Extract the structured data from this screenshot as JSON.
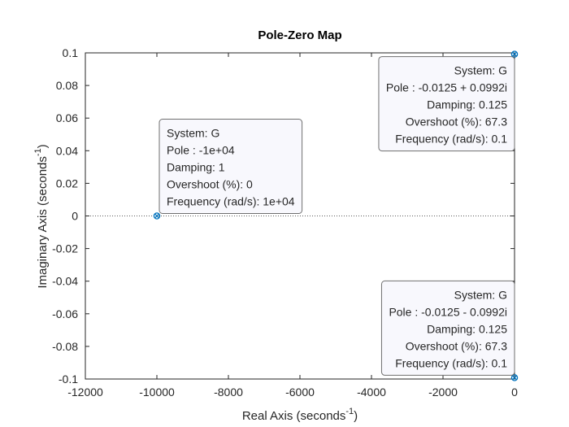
{
  "chart_data": {
    "type": "scatter",
    "title": "Pole-Zero Map",
    "xlabel": "Real Axis (seconds",
    "xlabel_sup": "-1",
    "xlabel_end": ")",
    "ylabel": "Imaginary Axis (seconds",
    "ylabel_sup": "-1",
    "ylabel_end": ")",
    "xlim": [
      -12000,
      0
    ],
    "ylim": [
      -0.1,
      0.1
    ],
    "xticks": [
      -12000,
      -10000,
      -8000,
      -6000,
      -4000,
      -2000,
      0
    ],
    "xtick_labels": [
      "-12000",
      "-10000",
      "-8000",
      "-6000",
      "-4000",
      "-2000",
      "0"
    ],
    "yticks": [
      0.1,
      0.08,
      0.06,
      0.04,
      0.02,
      0,
      -0.02,
      -0.04,
      -0.06,
      -0.08,
      -0.1
    ],
    "ytick_labels": [
      "0.1",
      "0.08",
      "0.06",
      "0.04",
      "0.02",
      "0",
      "-0.02",
      "-0.04",
      "-0.06",
      "-0.08",
      "-0.1"
    ],
    "grid": false,
    "marker_color": "#0072BD",
    "series": [
      {
        "name": "G",
        "poles": [
          {
            "x": -10000,
            "y": 0
          },
          {
            "x": -0.0125,
            "y": 0.0992
          },
          {
            "x": -0.0125,
            "y": -0.0992
          }
        ]
      }
    ],
    "datatips": [
      {
        "anchor": "top-right",
        "lines": [
          "System: G",
          "Pole : -0.0125 + 0.0992i",
          "Damping: 0.125",
          "Overshoot (%): 67.3",
          "Frequency (rad/s): 0.1"
        ]
      },
      {
        "anchor": "bottom-left",
        "lines": [
          "System: G",
          "Pole : -1e+04",
          "Damping: 1",
          "Overshoot (%): 0",
          "Frequency (rad/s): 1e+04"
        ]
      },
      {
        "anchor": "bottom-right",
        "lines": [
          "System: G",
          "Pole : -0.0125 - 0.0992i",
          "Damping: 0.125",
          "Overshoot (%): 67.3",
          "Frequency (rad/s): 0.1"
        ]
      }
    ]
  }
}
